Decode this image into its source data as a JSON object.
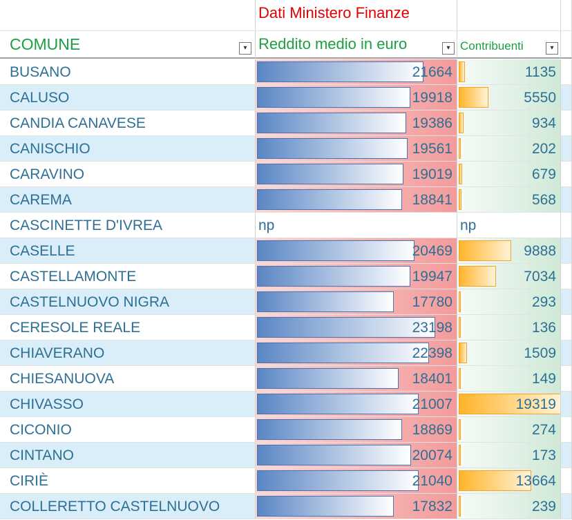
{
  "header": {
    "super_title": "Dati Ministero Finanze",
    "columns": [
      "COMUNE",
      "Reddito medio in euro",
      "Contribuenti"
    ]
  },
  "rows": [
    [
      "BUSANO",
      21664,
      1135
    ],
    [
      "CALUSO",
      19918,
      5550
    ],
    [
      "CANDIA CANAVESE",
      19386,
      934
    ],
    [
      "CANISCHIO",
      19561,
      202
    ],
    [
      "CARAVINO",
      19019,
      679
    ],
    [
      "CAREMA",
      18841,
      568
    ],
    [
      "CASCINETTE D'IVREA",
      "np",
      "np"
    ],
    [
      "CASELLE",
      20469,
      9888
    ],
    [
      "CASTELLAMONTE",
      19947,
      7034
    ],
    [
      "CASTELNUOVO NIGRA",
      17780,
      293
    ],
    [
      "CERESOLE REALE",
      23198,
      136
    ],
    [
      "CHIAVERANO",
      22398,
      1509
    ],
    [
      "CHIESANUOVA",
      18401,
      149
    ],
    [
      "CHIVASSO",
      21007,
      19319
    ],
    [
      "CICONIO",
      18869,
      274
    ],
    [
      "CINTANO",
      20074,
      173
    ],
    [
      "CIRIÈ",
      21040,
      13664
    ],
    [
      "COLLERETTO CASTELNUOVO",
      17832,
      239
    ]
  ]
}
